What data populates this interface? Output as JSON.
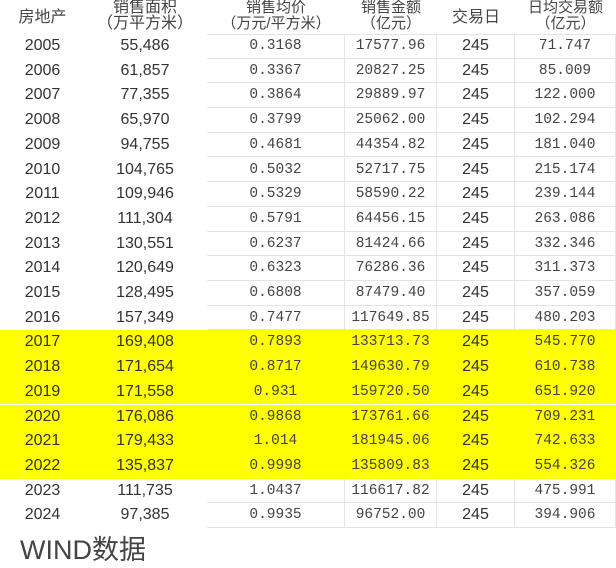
{
  "table": {
    "headers": [
      {
        "l1": "房地产",
        "l2": ""
      },
      {
        "l1": "销售面积",
        "l2": "（万平方米）"
      },
      {
        "l1": "销售均价",
        "l2": "（万元/平方米）"
      },
      {
        "l1": "销售金额",
        "l2": "（亿元）"
      },
      {
        "l1": "交易日",
        "l2": ""
      },
      {
        "l1": "日均交易额",
        "l2": "（亿元）"
      }
    ],
    "highlight_color": "#ffff00",
    "highlighted_years": [
      "2017",
      "2018",
      "2019",
      "2020",
      "2021",
      "2022"
    ],
    "rows": [
      [
        "2005",
        "55,486",
        "0.3168",
        "17577.96",
        "245",
        "71.747"
      ],
      [
        "2006",
        "61,857",
        "0.3367",
        "20827.25",
        "245",
        "85.009"
      ],
      [
        "2007",
        "77,355",
        "0.3864",
        "29889.97",
        "245",
        "122.000"
      ],
      [
        "2008",
        "65,970",
        "0.3799",
        "25062.00",
        "245",
        "102.294"
      ],
      [
        "2009",
        "94,755",
        "0.4681",
        "44354.82",
        "245",
        "181.040"
      ],
      [
        "2010",
        "104,765",
        "0.5032",
        "52717.75",
        "245",
        "215.174"
      ],
      [
        "2011",
        "109,946",
        "0.5329",
        "58590.22",
        "245",
        "239.144"
      ],
      [
        "2012",
        "111,304",
        "0.5791",
        "64456.15",
        "245",
        "263.086"
      ],
      [
        "2013",
        "130,551",
        "0.6237",
        "81424.66",
        "245",
        "332.346"
      ],
      [
        "2014",
        "120,649",
        "0.6323",
        "76286.36",
        "245",
        "311.373"
      ],
      [
        "2015",
        "128,495",
        "0.6808",
        "87479.40",
        "245",
        "357.059"
      ],
      [
        "2016",
        "157,349",
        "0.7477",
        "117649.85",
        "245",
        "480.203"
      ],
      [
        "2017",
        "169,408",
        "0.7893",
        "133713.73",
        "245",
        "545.770"
      ],
      [
        "2018",
        "171,654",
        "0.8717",
        "149630.79",
        "245",
        "610.738"
      ],
      [
        "2019",
        "171,558",
        "0.931",
        "159720.50",
        "245",
        "651.920"
      ],
      [
        "2020",
        "176,086",
        "0.9868",
        "173761.66",
        "245",
        "709.231"
      ],
      [
        "2021",
        "179,433",
        "1.014",
        "181945.06",
        "245",
        "742.633"
      ],
      [
        "2022",
        "135,837",
        "0.9998",
        "135809.83",
        "245",
        "554.326"
      ],
      [
        "2023",
        "111,735",
        "1.0437",
        "116617.82",
        "245",
        "475.991"
      ],
      [
        "2024",
        "97,385",
        "0.9935",
        "96752.00",
        "245",
        "394.906"
      ]
    ]
  },
  "footer": {
    "source": "WIND数据"
  }
}
